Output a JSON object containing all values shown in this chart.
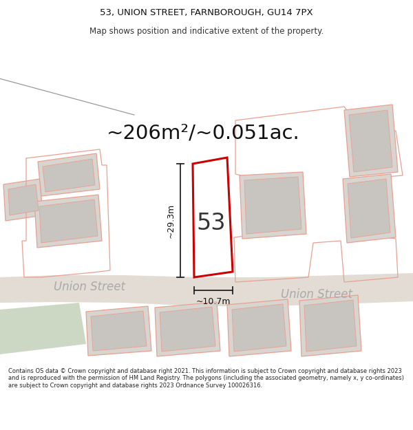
{
  "title_line1": "53, UNION STREET, FARNBOROUGH, GU14 7PX",
  "title_line2": "Map shows position and indicative extent of the property.",
  "area_text": "~206m²/~0.051ac.",
  "number_label": "53",
  "dim_height": "~29.3m",
  "dim_width": "~10.7m",
  "street_label1": "Union Street",
  "street_label2": "Union Street",
  "footer_text": "Contains OS data © Crown copyright and database right 2021. This information is subject to Crown copyright and database rights 2023 and is reproduced with the permission of HM Land Registry. The polygons (including the associated geometry, namely x, y co-ordinates) are subject to Crown copyright and database rights 2023 Ordnance Survey 100026316.",
  "bg_color": "#ffffff",
  "map_bg": "#f2f0ee",
  "building_fill": "#d8d4d0",
  "building_outline": "#e8a090",
  "building_inner_fill": "#c8c4c0",
  "plot_outline": "#cc0000",
  "plot_fill": "#ffffff",
  "green_area": "#ccd8c4",
  "dim_line_color": "#222222",
  "road_fill": "#e2dcd4",
  "street_text_color": "#aaaaaa"
}
